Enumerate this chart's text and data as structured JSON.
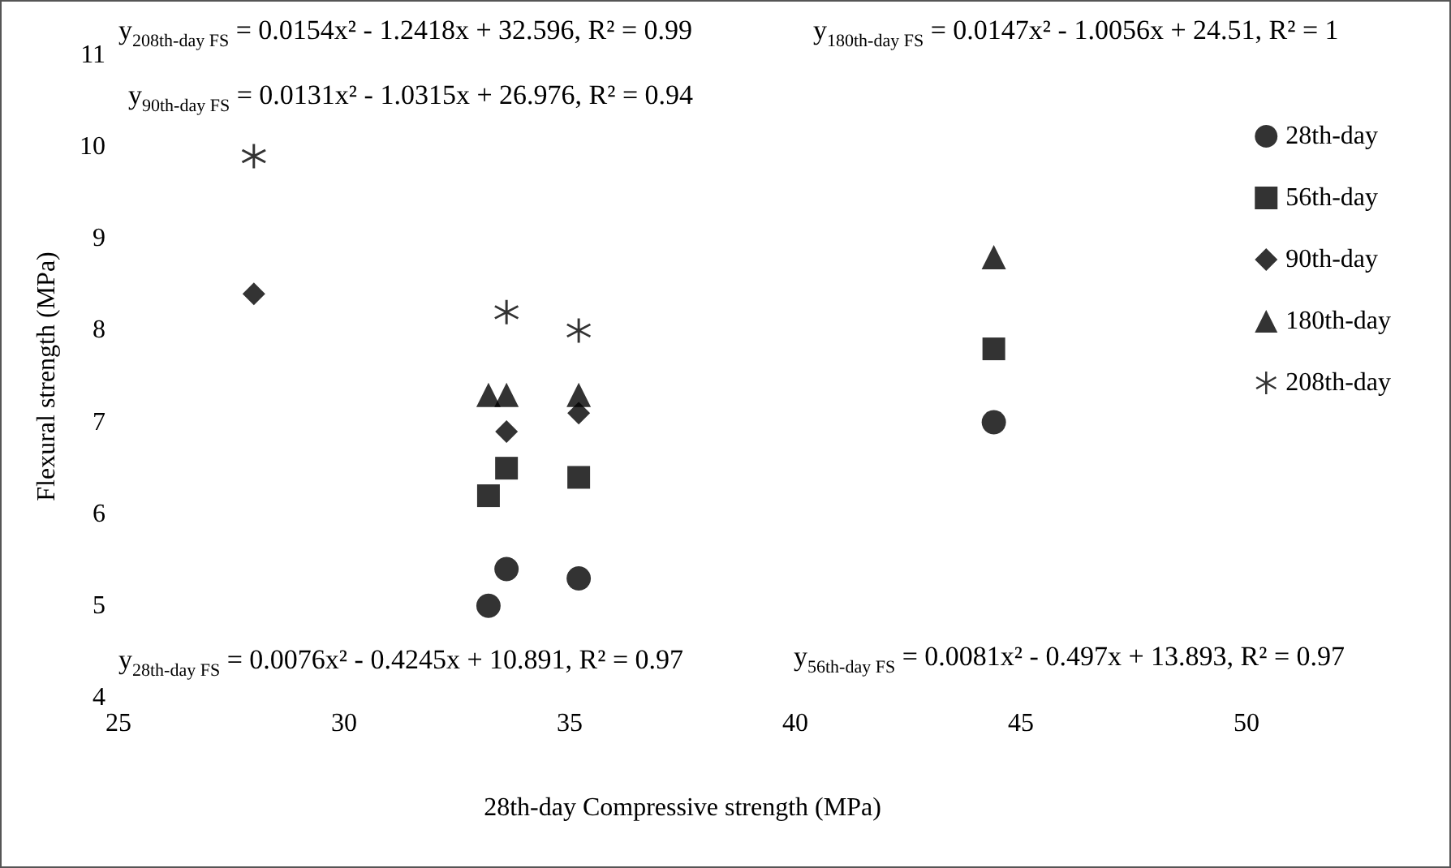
{
  "chart_data": {
    "type": "scatter",
    "xlabel": "28th-day Compressive strength (MPa)",
    "ylabel": "Flexural strength (MPa)",
    "xlim": [
      25,
      50
    ],
    "xticks": [
      25,
      30,
      35,
      40,
      45,
      50
    ],
    "ylim": [
      4,
      11
    ],
    "yticks": [
      4,
      5,
      6,
      7,
      8,
      9,
      10,
      11
    ],
    "grid": false,
    "legend": "top right",
    "series": [
      {
        "name": "28th-day",
        "color": "#000000",
        "marker": "circle",
        "x": [
          33.2,
          33.6,
          35.2,
          44.4
        ],
        "values": [
          5.0,
          5.4,
          5.3,
          7.0
        ]
      },
      {
        "name": "56th-day",
        "color": "#000000",
        "marker": "square",
        "x": [
          33.2,
          33.6,
          35.2,
          44.4
        ],
        "values": [
          6.2,
          6.5,
          6.4,
          7.8
        ]
      },
      {
        "name": "90th-day",
        "color": "#000000",
        "marker": "diamond",
        "x": [
          28.0,
          33.6,
          35.2
        ],
        "values": [
          8.4,
          6.9,
          7.1
        ]
      },
      {
        "name": "180th-day",
        "color": "#000000",
        "marker": "triangle",
        "x": [
          33.2,
          33.6,
          35.2,
          44.4
        ],
        "values": [
          7.3,
          7.3,
          7.3,
          8.8
        ]
      },
      {
        "name": "208th-day",
        "color": "#000000",
        "marker": "cross",
        "x": [
          28.0,
          33.6,
          35.2
        ],
        "values": [
          9.9,
          8.2,
          8.0
        ]
      }
    ],
    "annotations": [
      "y$_{208th-day FS}$ = 0.0154x² - 1.2418x + 32.596, R² = 0.99",
      "y$_{180th-day FS}$ = 0.0147x² - 1.0056x + 24.51, R² = 1",
      "y$_{90th-day FS}$ = 0.0131x² - 1.0315x + 26.976, R² = 0.94",
      "y$_{28th-day FS}$ = 0.0076x² - 0.4245x + 10.891, R² = 0.97",
      "y$_{56th-day FS}$ = 0.0081x² - 0.497x + 13.893, R² = 0.97"
    ]
  }
}
